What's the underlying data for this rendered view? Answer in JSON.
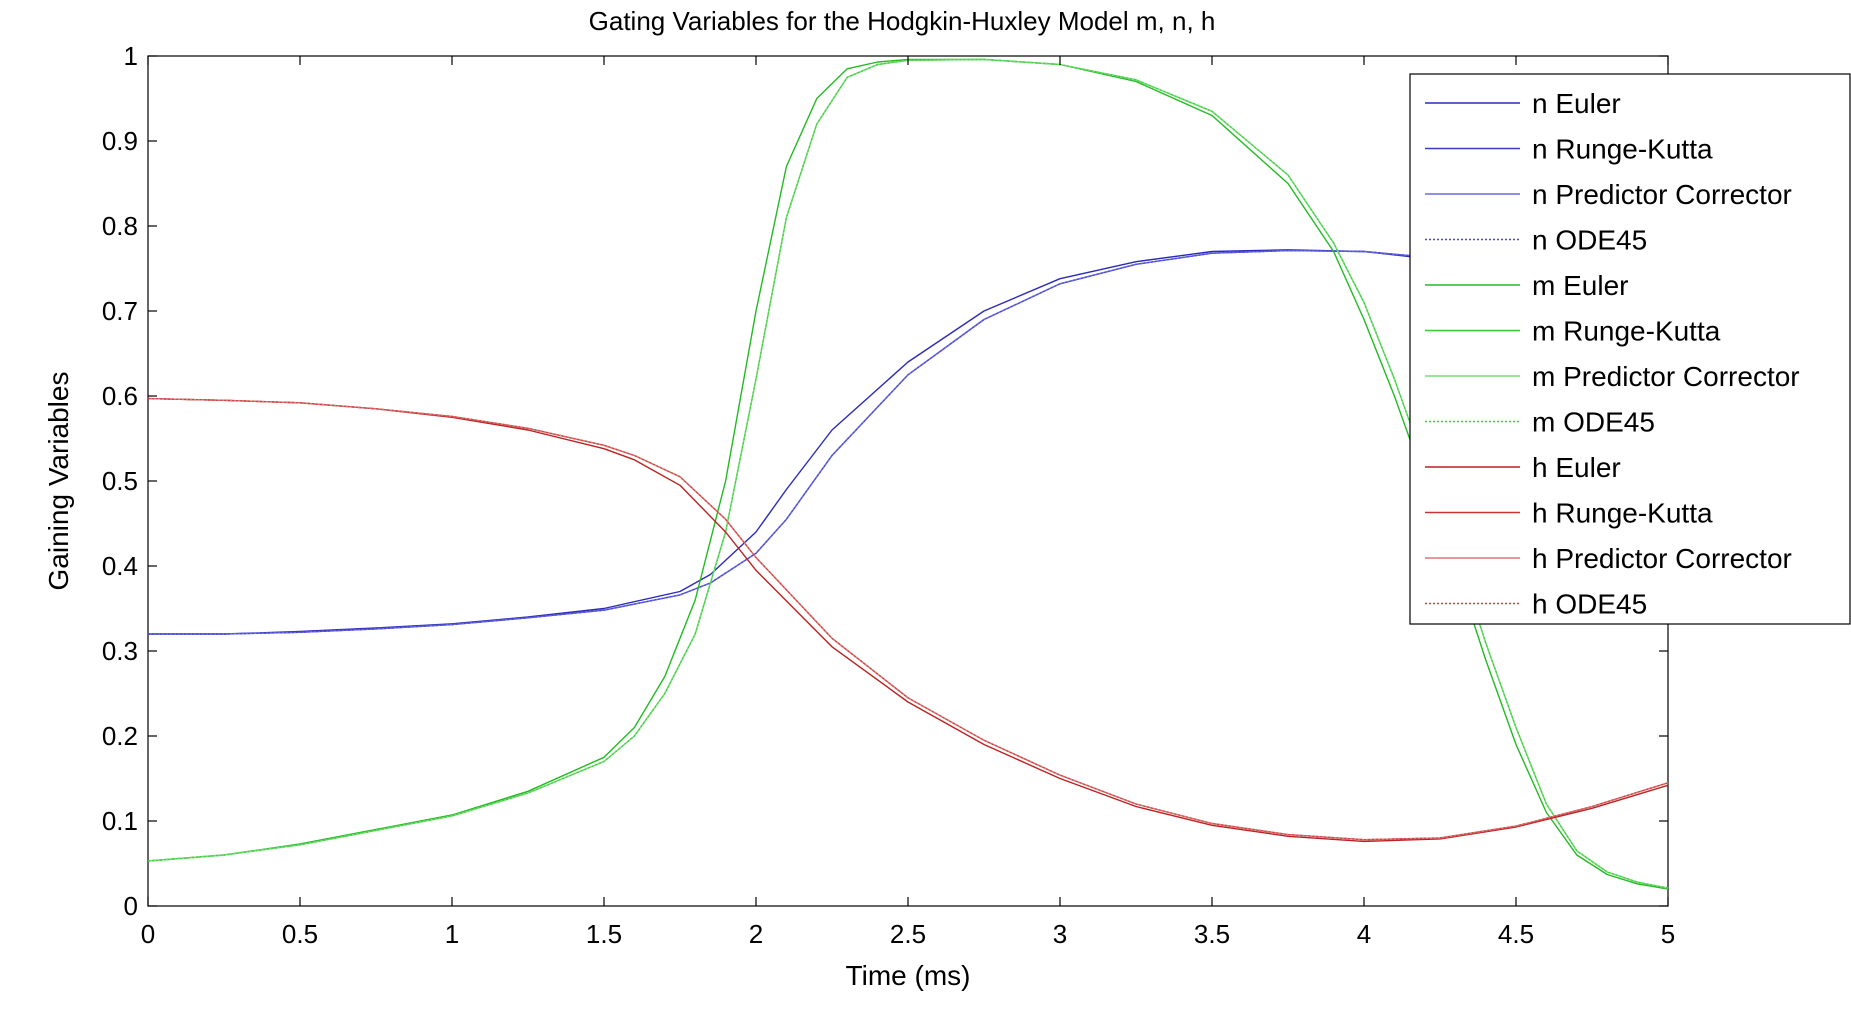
{
  "chart_data": {
    "type": "line",
    "title": "Gating Variables for the Hodgkin-Huxley Model m, n, h",
    "xlabel": "Time (ms)",
    "ylabel": "Gaining Variables",
    "xlim": [
      0,
      5
    ],
    "ylim": [
      0,
      1
    ],
    "xticks": [
      0,
      0.5,
      1,
      1.5,
      2,
      2.5,
      3,
      3.5,
      4,
      4.5,
      5
    ],
    "xtick_labels": [
      "0",
      "0.5",
      "1",
      "1.5",
      "2",
      "2.5",
      "3",
      "3.5",
      "4",
      "4.5",
      "5"
    ],
    "yticks": [
      0,
      0.1,
      0.2,
      0.3,
      0.4,
      0.5,
      0.6,
      0.7,
      0.8,
      0.9,
      1
    ],
    "ytick_labels": [
      "0",
      "0.1",
      "0.2",
      "0.3",
      "0.4",
      "0.5",
      "0.6",
      "0.7",
      "0.8",
      "0.9",
      "1"
    ],
    "grid": false,
    "legend_position": "top-right",
    "colors": {
      "n": "#3a3acc",
      "m": "#33cc33",
      "h": "#cc3333"
    },
    "series": [
      {
        "name": "n Euler",
        "color": "#2b2bb8",
        "line_style": "solid",
        "x": [
          0,
          0.25,
          0.5,
          0.75,
          1,
          1.25,
          1.5,
          1.75,
          1.85,
          2,
          2.1,
          2.25,
          2.5,
          2.75,
          3,
          3.25,
          3.5,
          3.75,
          4,
          4.25,
          4.5,
          4.75,
          5
        ],
        "y": [
          0.32,
          0.32,
          0.323,
          0.327,
          0.332,
          0.34,
          0.35,
          0.37,
          0.39,
          0.44,
          0.49,
          0.56,
          0.64,
          0.7,
          0.738,
          0.758,
          0.77,
          0.772,
          0.77,
          0.76,
          0.74,
          0.71,
          0.68
        ]
      },
      {
        "name": "n Runge-Kutta",
        "color": "#3a3acc",
        "line_style": "solid",
        "x": [
          0,
          0.25,
          0.5,
          0.75,
          1,
          1.25,
          1.5,
          1.75,
          1.85,
          2,
          2.1,
          2.25,
          2.5,
          2.75,
          3,
          3.25,
          3.5,
          3.75,
          4,
          4.25,
          4.5,
          4.75,
          5
        ],
        "y": [
          0.32,
          0.32,
          0.322,
          0.326,
          0.331,
          0.339,
          0.348,
          0.366,
          0.38,
          0.415,
          0.455,
          0.53,
          0.625,
          0.69,
          0.732,
          0.755,
          0.768,
          0.771,
          0.77,
          0.762,
          0.742,
          0.713,
          0.683
        ]
      },
      {
        "name": "n Predictor Corrector",
        "color": "#6b6bdd",
        "line_style": "solid",
        "x": [
          0,
          0.25,
          0.5,
          0.75,
          1,
          1.25,
          1.5,
          1.75,
          1.85,
          2,
          2.1,
          2.25,
          2.5,
          2.75,
          3,
          3.25,
          3.5,
          3.75,
          4,
          4.25,
          4.5,
          4.75,
          5
        ],
        "y": [
          0.32,
          0.32,
          0.322,
          0.326,
          0.331,
          0.339,
          0.348,
          0.366,
          0.38,
          0.415,
          0.455,
          0.53,
          0.625,
          0.69,
          0.732,
          0.755,
          0.768,
          0.771,
          0.77,
          0.762,
          0.742,
          0.713,
          0.683
        ]
      },
      {
        "name": "n ODE45",
        "color": "#4a4ad6",
        "line_style": "dotted",
        "x": [
          0,
          0.25,
          0.5,
          0.75,
          1,
          1.25,
          1.5,
          1.75,
          1.85,
          2,
          2.1,
          2.25,
          2.5,
          2.75,
          3,
          3.25,
          3.5,
          3.75,
          4,
          4.25,
          4.5,
          4.75,
          5
        ],
        "y": [
          0.32,
          0.32,
          0.322,
          0.326,
          0.331,
          0.339,
          0.348,
          0.366,
          0.38,
          0.415,
          0.455,
          0.53,
          0.625,
          0.69,
          0.732,
          0.755,
          0.768,
          0.771,
          0.77,
          0.762,
          0.742,
          0.713,
          0.683
        ]
      },
      {
        "name": "m Euler",
        "color": "#22bb22",
        "line_style": "solid",
        "x": [
          0,
          0.25,
          0.5,
          0.75,
          1,
          1.25,
          1.5,
          1.6,
          1.7,
          1.8,
          1.9,
          2,
          2.1,
          2.2,
          2.3,
          2.4,
          2.5,
          2.75,
          3,
          3.25,
          3.5,
          3.75,
          3.9,
          4,
          4.1,
          4.2,
          4.3,
          4.4,
          4.5,
          4.6,
          4.7,
          4.8,
          4.9,
          5
        ],
        "y": [
          0.053,
          0.06,
          0.073,
          0.09,
          0.107,
          0.135,
          0.175,
          0.21,
          0.27,
          0.36,
          0.5,
          0.7,
          0.87,
          0.95,
          0.985,
          0.993,
          0.996,
          0.996,
          0.99,
          0.97,
          0.93,
          0.85,
          0.77,
          0.69,
          0.6,
          0.5,
          0.4,
          0.29,
          0.19,
          0.11,
          0.06,
          0.037,
          0.026,
          0.02
        ]
      },
      {
        "name": "m Runge-Kutta",
        "color": "#33cc33",
        "line_style": "solid",
        "x": [
          0,
          0.25,
          0.5,
          0.75,
          1,
          1.25,
          1.5,
          1.6,
          1.7,
          1.8,
          1.9,
          2,
          2.1,
          2.2,
          2.3,
          2.4,
          2.5,
          2.75,
          3,
          3.25,
          3.5,
          3.75,
          3.9,
          4,
          4.1,
          4.2,
          4.3,
          4.4,
          4.5,
          4.6,
          4.7,
          4.8,
          4.9,
          5
        ],
        "y": [
          0.053,
          0.06,
          0.072,
          0.089,
          0.106,
          0.133,
          0.17,
          0.2,
          0.25,
          0.32,
          0.44,
          0.62,
          0.81,
          0.92,
          0.975,
          0.99,
          0.995,
          0.996,
          0.99,
          0.972,
          0.935,
          0.86,
          0.78,
          0.71,
          0.62,
          0.52,
          0.42,
          0.31,
          0.21,
          0.12,
          0.065,
          0.04,
          0.028,
          0.021
        ]
      },
      {
        "name": "m Predictor Corrector",
        "color": "#77dd77",
        "line_style": "solid",
        "x": [
          0,
          0.25,
          0.5,
          0.75,
          1,
          1.25,
          1.5,
          1.6,
          1.7,
          1.8,
          1.9,
          2,
          2.1,
          2.2,
          2.3,
          2.4,
          2.5,
          2.75,
          3,
          3.25,
          3.5,
          3.75,
          3.9,
          4,
          4.1,
          4.2,
          4.3,
          4.4,
          4.5,
          4.6,
          4.7,
          4.8,
          4.9,
          5
        ],
        "y": [
          0.053,
          0.06,
          0.072,
          0.089,
          0.106,
          0.133,
          0.17,
          0.2,
          0.25,
          0.32,
          0.44,
          0.62,
          0.81,
          0.92,
          0.975,
          0.99,
          0.995,
          0.996,
          0.99,
          0.972,
          0.935,
          0.86,
          0.78,
          0.71,
          0.62,
          0.52,
          0.42,
          0.31,
          0.21,
          0.12,
          0.065,
          0.04,
          0.028,
          0.021
        ]
      },
      {
        "name": "m ODE45",
        "color": "#44cc44",
        "line_style": "dotted",
        "x": [
          0,
          0.25,
          0.5,
          0.75,
          1,
          1.25,
          1.5,
          1.6,
          1.7,
          1.8,
          1.9,
          2,
          2.1,
          2.2,
          2.3,
          2.4,
          2.5,
          2.75,
          3,
          3.25,
          3.5,
          3.75,
          3.9,
          4,
          4.1,
          4.2,
          4.3,
          4.4,
          4.5,
          4.6,
          4.7,
          4.8,
          4.9,
          5
        ],
        "y": [
          0.053,
          0.06,
          0.072,
          0.089,
          0.106,
          0.133,
          0.17,
          0.2,
          0.25,
          0.32,
          0.44,
          0.62,
          0.81,
          0.92,
          0.975,
          0.99,
          0.995,
          0.996,
          0.99,
          0.972,
          0.935,
          0.86,
          0.78,
          0.71,
          0.62,
          0.52,
          0.42,
          0.31,
          0.21,
          0.12,
          0.065,
          0.04,
          0.028,
          0.021
        ]
      },
      {
        "name": "h Euler",
        "color": "#bb2222",
        "line_style": "solid",
        "x": [
          0,
          0.25,
          0.5,
          0.75,
          1,
          1.25,
          1.5,
          1.6,
          1.75,
          1.9,
          2,
          2.25,
          2.5,
          2.75,
          3,
          3.25,
          3.5,
          3.75,
          4,
          4.25,
          4.5,
          4.75,
          5
        ],
        "y": [
          0.597,
          0.595,
          0.592,
          0.585,
          0.575,
          0.56,
          0.538,
          0.525,
          0.495,
          0.44,
          0.395,
          0.305,
          0.24,
          0.19,
          0.15,
          0.117,
          0.095,
          0.082,
          0.076,
          0.079,
          0.093,
          0.115,
          0.142
        ]
      },
      {
        "name": "h Runge-Kutta",
        "color": "#cc3333",
        "line_style": "solid",
        "x": [
          0,
          0.25,
          0.5,
          0.75,
          1,
          1.25,
          1.5,
          1.6,
          1.75,
          1.9,
          2,
          2.25,
          2.5,
          2.75,
          3,
          3.25,
          3.5,
          3.75,
          4,
          4.25,
          4.5,
          4.75,
          5
        ],
        "y": [
          0.597,
          0.595,
          0.592,
          0.585,
          0.576,
          0.562,
          0.542,
          0.53,
          0.505,
          0.455,
          0.41,
          0.315,
          0.245,
          0.195,
          0.154,
          0.12,
          0.097,
          0.084,
          0.078,
          0.08,
          0.094,
          0.117,
          0.145
        ]
      },
      {
        "name": "h Predictor Corrector",
        "color": "#dd7777",
        "line_style": "solid",
        "x": [
          0,
          0.25,
          0.5,
          0.75,
          1,
          1.25,
          1.5,
          1.6,
          1.75,
          1.9,
          2,
          2.25,
          2.5,
          2.75,
          3,
          3.25,
          3.5,
          3.75,
          4,
          4.25,
          4.5,
          4.75,
          5
        ],
        "y": [
          0.597,
          0.595,
          0.592,
          0.585,
          0.576,
          0.562,
          0.542,
          0.53,
          0.505,
          0.455,
          0.41,
          0.315,
          0.245,
          0.195,
          0.154,
          0.12,
          0.097,
          0.084,
          0.078,
          0.08,
          0.094,
          0.117,
          0.145
        ]
      },
      {
        "name": "h ODE45",
        "color": "#cc4444",
        "line_style": "dotted",
        "x": [
          0,
          0.25,
          0.5,
          0.75,
          1,
          1.25,
          1.5,
          1.6,
          1.75,
          1.9,
          2,
          2.25,
          2.5,
          2.75,
          3,
          3.25,
          3.5,
          3.75,
          4,
          4.25,
          4.5,
          4.75,
          5
        ],
        "y": [
          0.597,
          0.595,
          0.592,
          0.585,
          0.576,
          0.562,
          0.542,
          0.53,
          0.505,
          0.455,
          0.41,
          0.315,
          0.245,
          0.195,
          0.154,
          0.12,
          0.097,
          0.084,
          0.078,
          0.08,
          0.094,
          0.117,
          0.145
        ]
      }
    ]
  }
}
